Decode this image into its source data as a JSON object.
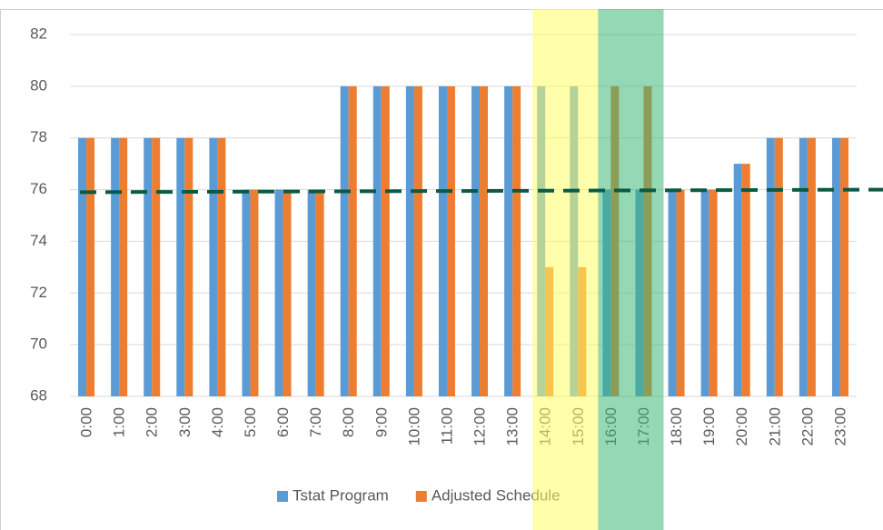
{
  "chart_data": {
    "type": "bar",
    "categories": [
      "0:00",
      "1:00",
      "2:00",
      "3:00",
      "4:00",
      "5:00",
      "6:00",
      "7:00",
      "8:00",
      "9:00",
      "10:00",
      "11:00",
      "12:00",
      "13:00",
      "14:00",
      "15:00",
      "16:00",
      "17:00",
      "18:00",
      "19:00",
      "20:00",
      "21:00",
      "22:00",
      "23:00"
    ],
    "series": [
      {
        "name": "Tstat Program",
        "color": "#5b9bd5",
        "values": [
          78,
          78,
          78,
          78,
          78,
          76,
          76,
          76,
          80,
          80,
          80,
          80,
          80,
          80,
          80,
          80,
          76,
          76,
          76,
          76,
          77,
          78,
          78,
          78
        ]
      },
      {
        "name": "Adjusted Schedule",
        "color": "#ed7d31",
        "values": [
          78,
          78,
          78,
          78,
          78,
          76,
          76,
          76,
          80,
          80,
          80,
          80,
          80,
          80,
          73,
          73,
          80,
          80,
          76,
          76,
          77,
          78,
          78,
          78
        ]
      }
    ],
    "ylim": [
      68,
      82
    ],
    "yticks": [
      68,
      70,
      72,
      74,
      76,
      78,
      80,
      82
    ],
    "grid": true,
    "legend": "bottom",
    "reference_line": {
      "start": 75.9,
      "end": 76.0,
      "color": "#0b5a45"
    },
    "highlights": [
      {
        "from": "14:00",
        "to": "15:00",
        "color": "#ffff66"
      },
      {
        "from": "16:00",
        "to": "17:00",
        "color": "#3cb878"
      }
    ]
  }
}
